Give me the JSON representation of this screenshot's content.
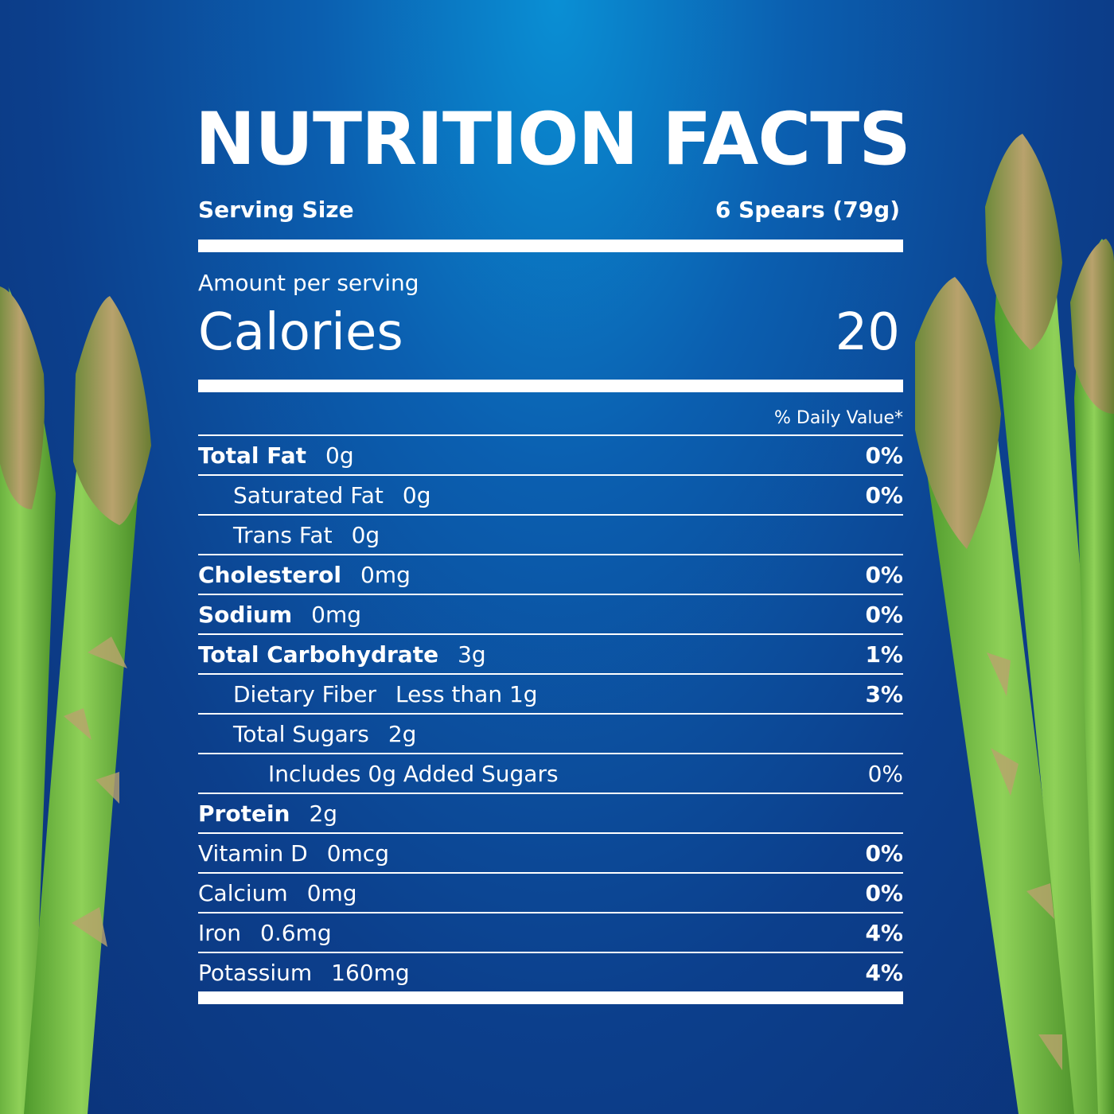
{
  "title": "NUTRITION FACTS",
  "serving": {
    "label": "Serving Size",
    "value": "6 Spears (79g)"
  },
  "amount_per_serving": "Amount per serving",
  "calories": {
    "label": "Calories",
    "value": "20"
  },
  "daily_value_header": "% Daily Value*",
  "nutrients": [
    {
      "name": "Total Fat",
      "amount": "0g",
      "dv": "0%"
    },
    {
      "name": "Saturated Fat",
      "amount": "0g",
      "dv": "0%"
    },
    {
      "name": "Trans Fat",
      "amount": "0g",
      "dv": ""
    },
    {
      "name": "Cholesterol",
      "amount": "0mg",
      "dv": "0%"
    },
    {
      "name": "Sodium",
      "amount": "0mg",
      "dv": "0%"
    },
    {
      "name": "Total Carbohydrate",
      "amount": "3g",
      "dv": "1%"
    },
    {
      "name": "Dietary Fiber",
      "amount": "Less than 1g",
      "dv": "3%"
    },
    {
      "name": "Total Sugars",
      "amount": "2g",
      "dv": ""
    },
    {
      "name": "Includes 0g Added Sugars",
      "amount": "",
      "dv": "0%"
    },
    {
      "name": "Protein",
      "amount": "2g",
      "dv": ""
    },
    {
      "name": "Vitamin D",
      "amount": "0mcg",
      "dv": "0%"
    },
    {
      "name": "Calcium",
      "amount": "0mg",
      "dv": "0%"
    },
    {
      "name": "Iron",
      "amount": "0.6mg",
      "dv": "4%"
    },
    {
      "name": "Potassium",
      "amount": "160mg",
      "dv": "4%"
    }
  ],
  "colors": {
    "background_top": "#0a8fd4",
    "background_bottom": "#0b3278",
    "asparagus_green": "#7cc24a",
    "asparagus_tip": "#9a7a6a"
  }
}
